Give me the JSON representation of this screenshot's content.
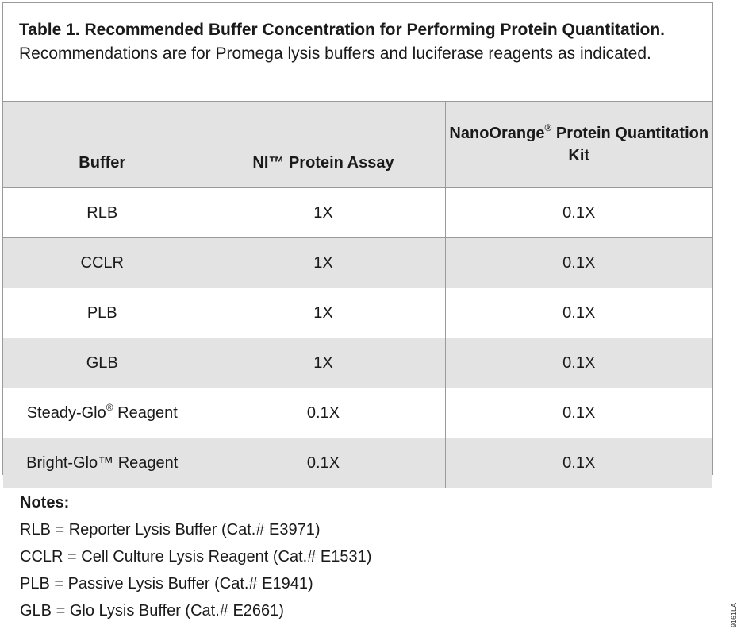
{
  "caption": {
    "title": "Table 1. Recommended Buffer Concentration for Performing Protein Quantitation.",
    "subtitle": "Recommendations are for Promega lysis buffers and luciferase reagents as indicated."
  },
  "table": {
    "headers": {
      "buffer": "Buffer",
      "ni": "NI™ Protein Assay",
      "nanoorange_pre": "NanoOrange",
      "nanoorange_mark": "®",
      "nanoorange_post": " Protein Quantitation Kit"
    },
    "rows": [
      {
        "buffer": "RLB",
        "buffer_mark": "",
        "buffer_suffix": "",
        "ni": "1X",
        "nanoorange": "0.1X"
      },
      {
        "buffer": "CCLR",
        "buffer_mark": "",
        "buffer_suffix": "",
        "ni": "1X",
        "nanoorange": "0.1X"
      },
      {
        "buffer": "PLB",
        "buffer_mark": "",
        "buffer_suffix": "",
        "ni": "1X",
        "nanoorange": "0.1X"
      },
      {
        "buffer": "GLB",
        "buffer_mark": "",
        "buffer_suffix": "",
        "ni": "1X",
        "nanoorange": "0.1X"
      },
      {
        "buffer": "Steady-Glo",
        "buffer_mark": "®",
        "buffer_suffix": " Reagent",
        "ni": "0.1X",
        "nanoorange": "0.1X"
      },
      {
        "buffer": "Bright-Glo™ Reagent",
        "buffer_mark": "",
        "buffer_suffix": "",
        "ni": "0.1X",
        "nanoorange": "0.1X"
      }
    ]
  },
  "notes": {
    "title": "Notes:",
    "items": [
      "RLB = Reporter Lysis Buffer (Cat.# E3971)",
      "CCLR = Cell Culture Lysis Reagent (Cat.# E1531)",
      "PLB = Passive Lysis Buffer (Cat.# E1941)",
      "GLB = Glo Lysis Buffer (Cat.# E2661)"
    ]
  },
  "figure_code": "9161LA"
}
